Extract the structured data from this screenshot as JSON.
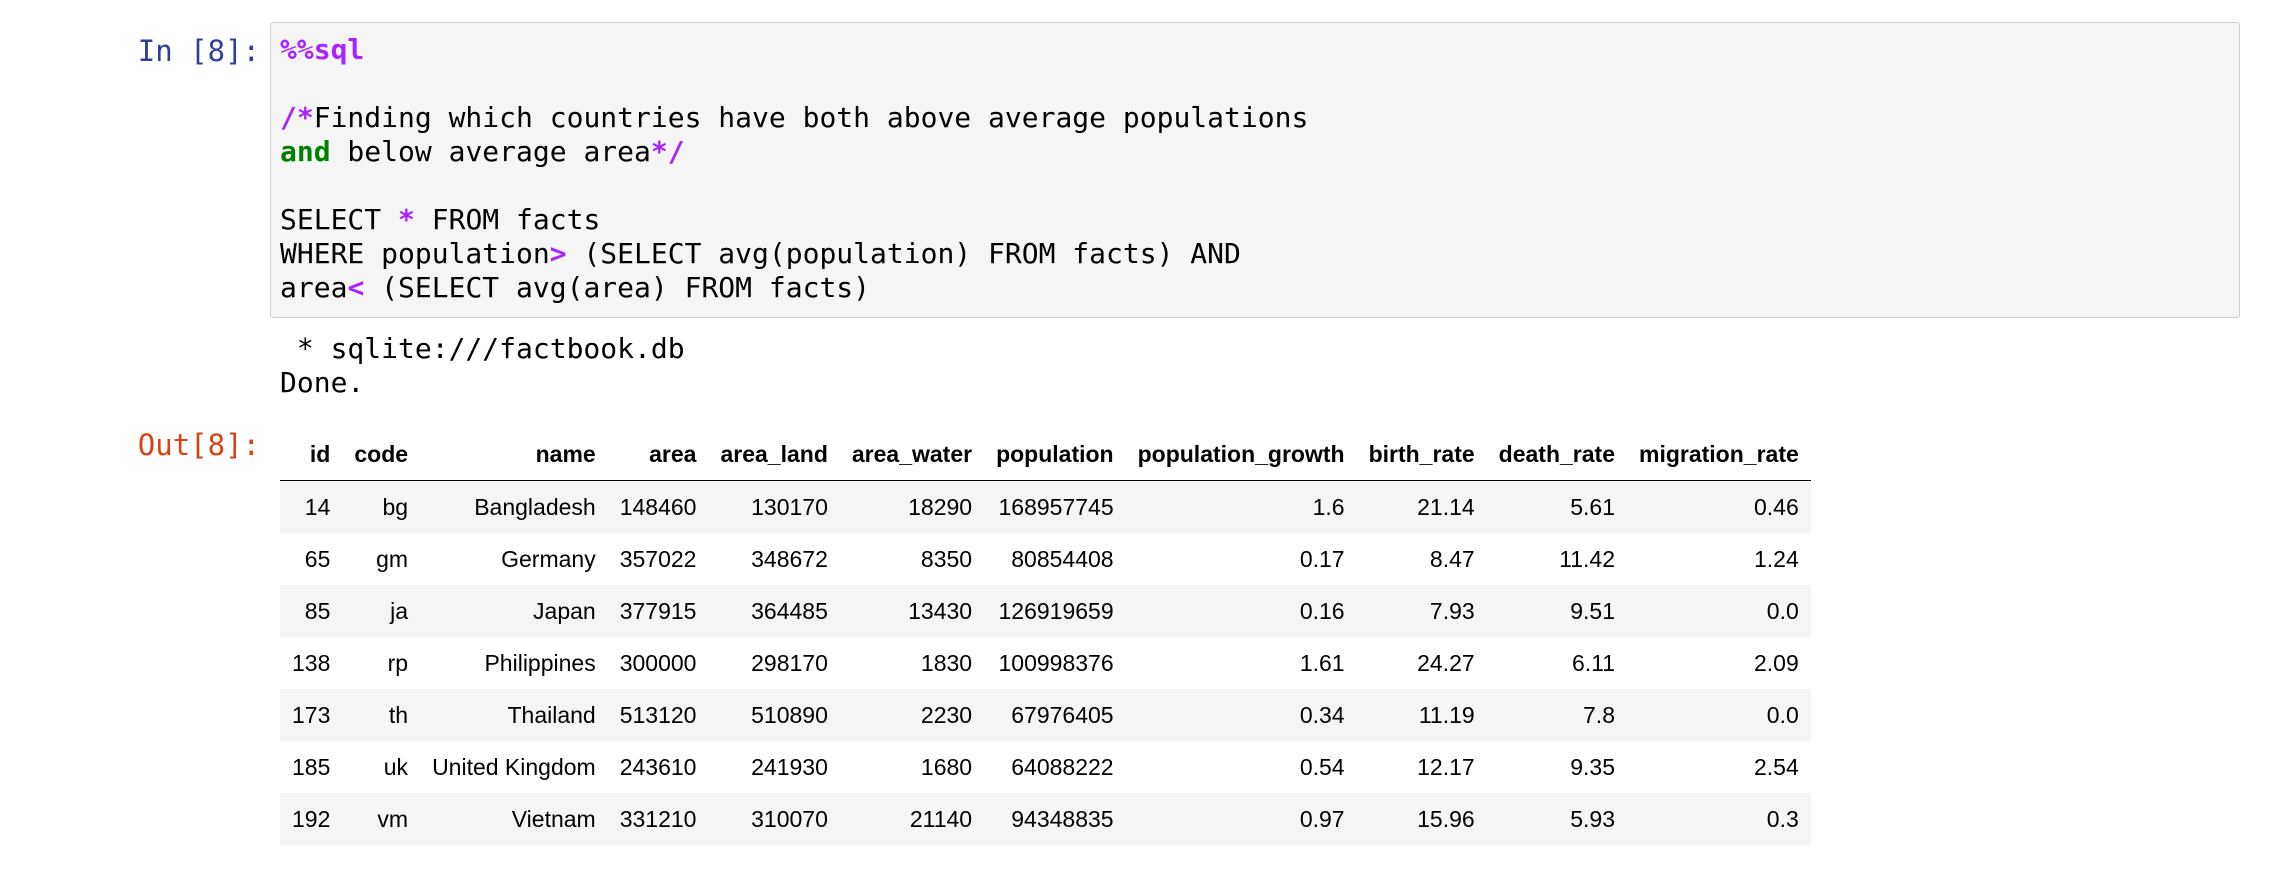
{
  "cell_in": {
    "prompt": "In [8]:",
    "code": {
      "magic": "%%sql",
      "comment_open": "/*",
      "comment_line1": "Finding which countries have both above average populations",
      "comment_and": "and",
      "comment_line2_rest": " below average area",
      "comment_close": "*/",
      "sel_a": "SELECT ",
      "sel_star": "*",
      "sel_b": " FROM facts",
      "where_a": "WHERE population",
      "where_op": ">",
      "where_b": " (SELECT avg(population) FROM facts) AND",
      "area_a": "area",
      "area_op": "<",
      "area_b": " (SELECT avg(area) FROM facts)"
    }
  },
  "stdout": {
    "line1": " * sqlite:///factbook.db",
    "line2": "Done."
  },
  "cell_out": {
    "prompt": "Out[8]:",
    "table": {
      "columns": [
        "id",
        "code",
        "name",
        "area",
        "area_land",
        "area_water",
        "population",
        "population_growth",
        "birth_rate",
        "death_rate",
        "migration_rate"
      ],
      "rows": [
        [
          "14",
          "bg",
          "Bangladesh",
          "148460",
          "130170",
          "18290",
          "168957745",
          "1.6",
          "21.14",
          "5.61",
          "0.46"
        ],
        [
          "65",
          "gm",
          "Germany",
          "357022",
          "348672",
          "8350",
          "80854408",
          "0.17",
          "8.47",
          "11.42",
          "1.24"
        ],
        [
          "85",
          "ja",
          "Japan",
          "377915",
          "364485",
          "13430",
          "126919659",
          "0.16",
          "7.93",
          "9.51",
          "0.0"
        ],
        [
          "138",
          "rp",
          "Philippines",
          "300000",
          "298170",
          "1830",
          "100998376",
          "1.61",
          "24.27",
          "6.11",
          "2.09"
        ],
        [
          "173",
          "th",
          "Thailand",
          "513120",
          "510890",
          "2230",
          "67976405",
          "0.34",
          "11.19",
          "7.8",
          "0.0"
        ],
        [
          "185",
          "uk",
          "United Kingdom",
          "243610",
          "241930",
          "1680",
          "64088222",
          "0.54",
          "12.17",
          "9.35",
          "2.54"
        ],
        [
          "192",
          "vm",
          "Vietnam",
          "331210",
          "310070",
          "21140",
          "94348835",
          "0.97",
          "15.96",
          "5.93",
          "0.3"
        ]
      ]
    }
  },
  "colors": {
    "in_prompt": "#303f9f",
    "out_prompt": "#d84315",
    "magic": "#aa22ff",
    "keyword": "#008000",
    "cell_bg": "#f5f5f5",
    "cell_border": "#cfcfcf"
  }
}
